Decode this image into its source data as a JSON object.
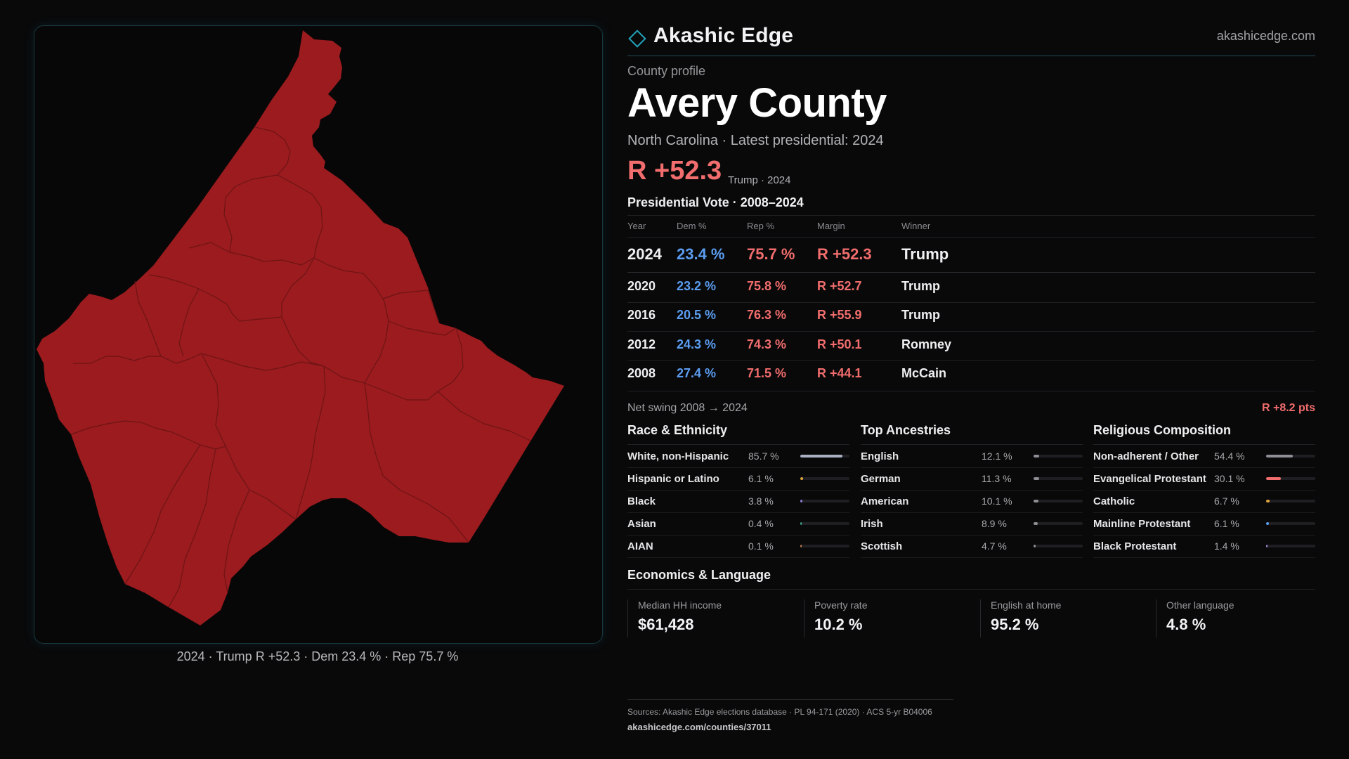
{
  "brand": {
    "name": "Akashic Edge",
    "url": "akashicedge.com",
    "accent": "#22a3b8"
  },
  "map": {
    "caption": "2024 · Trump R +52.3 · Dem 23.4 % · Rep 75.7 %",
    "fill_color": "#9b1b1e"
  },
  "header": {
    "kicker": "County profile",
    "title": "Avery County",
    "subtitle": "North Carolina · Latest presidential: 2024",
    "margin": "R +52.3",
    "margin_note": "Trump · 2024"
  },
  "vote_table": {
    "title": "Presidential Vote · 2008–2024",
    "columns": [
      "Year",
      "Dem %",
      "Rep %",
      "Margin",
      "Winner"
    ],
    "rows": [
      {
        "year": "2024",
        "dem": "23.4 %",
        "rep": "75.7 %",
        "margin": "R +52.3",
        "winner": "Trump"
      },
      {
        "year": "2020",
        "dem": "23.2 %",
        "rep": "75.8 %",
        "margin": "R +52.7",
        "winner": "Trump"
      },
      {
        "year": "2016",
        "dem": "20.5 %",
        "rep": "76.3 %",
        "margin": "R +55.9",
        "winner": "Trump"
      },
      {
        "year": "2012",
        "dem": "24.3 %",
        "rep": "74.3 %",
        "margin": "R +50.1",
        "winner": "Romney"
      },
      {
        "year": "2008",
        "dem": "27.4 %",
        "rep": "71.5 %",
        "margin": "R +44.1",
        "winner": "McCain"
      }
    ]
  },
  "swing": {
    "label": "Net swing 2008 → 2024",
    "value": "R +8.2 pts"
  },
  "race": {
    "title": "Race & Ethnicity",
    "items": [
      {
        "label": "White, non-Hispanic",
        "value": "85.7 %",
        "pct": 85.7,
        "color": "#a9b1c2"
      },
      {
        "label": "Hispanic or Latino",
        "value": "6.1 %",
        "pct": 6.1,
        "color": "#e0a43a"
      },
      {
        "label": "Black",
        "value": "3.8 %",
        "pct": 3.8,
        "color": "#8b7fd6"
      },
      {
        "label": "Asian",
        "value": "0.4 %",
        "pct": 0.4,
        "color": "#3fb59a"
      },
      {
        "label": "AIAN",
        "value": "0.1 %",
        "pct": 0.1,
        "color": "#c07a4a"
      }
    ]
  },
  "ancestry": {
    "title": "Top Ancestries",
    "items": [
      {
        "label": "English",
        "value": "12.1 %",
        "pct": 12.1,
        "color": "#8e8e94"
      },
      {
        "label": "German",
        "value": "11.3 %",
        "pct": 11.3,
        "color": "#8e8e94"
      },
      {
        "label": "American",
        "value": "10.1 %",
        "pct": 10.1,
        "color": "#8e8e94"
      },
      {
        "label": "Irish",
        "value": "8.9 %",
        "pct": 8.9,
        "color": "#8e8e94"
      },
      {
        "label": "Scottish",
        "value": "4.7 %",
        "pct": 4.7,
        "color": "#8e8e94"
      }
    ]
  },
  "religion": {
    "title": "Religious Composition",
    "items": [
      {
        "label": "Non-adherent / Other",
        "value": "54.4 %",
        "pct": 54.4,
        "color": "#8e8e94"
      },
      {
        "label": "Evangelical Protestant",
        "value": "30.1 %",
        "pct": 30.1,
        "color": "#f26d6d"
      },
      {
        "label": "Catholic",
        "value": "6.7 %",
        "pct": 6.7,
        "color": "#e0a43a"
      },
      {
        "label": "Mainline Protestant",
        "value": "6.1 %",
        "pct": 6.1,
        "color": "#5b9df0"
      },
      {
        "label": "Black Protestant",
        "value": "1.4 %",
        "pct": 1.4,
        "color": "#a98be0"
      }
    ]
  },
  "economics": {
    "title": "Economics & Language",
    "items": [
      {
        "label": "Median HH income",
        "value": "$61,428"
      },
      {
        "label": "Poverty rate",
        "value": "10.2 %"
      },
      {
        "label": "English at home",
        "value": "95.2 %"
      },
      {
        "label": "Other language",
        "value": "4.8 %"
      }
    ]
  },
  "footer": {
    "sources": "Sources: Akashic Edge elections database · PL 94-171 (2020) · ACS 5-yr B04006",
    "url": "akashicedge.com/counties/37011"
  }
}
